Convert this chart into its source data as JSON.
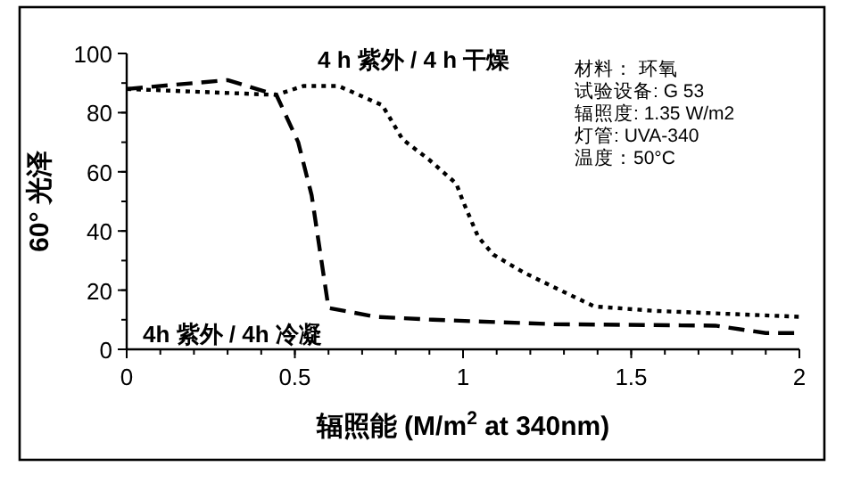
{
  "chart_data": {
    "type": "line",
    "ylabel": "60° 光泽",
    "xlabel": "辐照能 (M/m$^{2}$ at 340nm)",
    "xlim": [
      0,
      2
    ],
    "xticks": [
      0,
      0.5,
      1,
      1.5,
      2
    ],
    "ylim": [
      0,
      100
    ],
    "yticks": [
      0,
      20,
      40,
      60,
      80,
      100
    ],
    "grid": false,
    "series": [
      {
        "name": "4 h 紫外 / 4 h 干燥",
        "color": "#000000",
        "line_style": "dotted",
        "x": [
          0,
          0.445,
          0.525,
          0.63,
          0.76,
          0.82,
          0.9,
          0.98,
          1.0,
          1.045,
          1.09,
          1.18,
          1.27,
          1.39,
          1.57,
          2
        ],
        "values": [
          88,
          86,
          89,
          89,
          82.5,
          71,
          64,
          56,
          50,
          38,
          32,
          26,
          21,
          14.5,
          13,
          11
        ]
      },
      {
        "name": "4h 紫外 / 4h 冷凝",
        "color": "#000000",
        "line_style": "dashed",
        "x": [
          0,
          0.3,
          0.445,
          0.51,
          0.55,
          0.6,
          0.74,
          0.91,
          1.27,
          1.75,
          1.9,
          2
        ],
        "values": [
          88,
          91,
          86,
          70,
          52,
          14,
          11,
          10,
          8.5,
          8,
          5.5,
          5.5
        ]
      }
    ],
    "annotations": [
      "材料： 环氧",
      "试验设备: G 53",
      "辐照度: 1.35 W/m2",
      "灯管: UVA-340",
      "温度：50°C"
    ]
  }
}
